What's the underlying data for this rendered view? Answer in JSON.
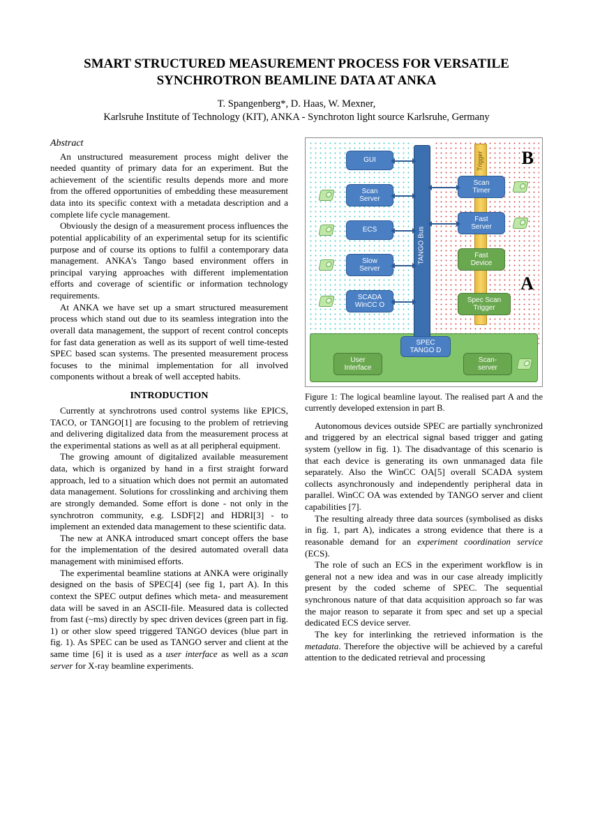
{
  "title_line1": "SMART STRUCTURED MEASUREMENT PROCESS FOR VERSATILE",
  "title_line2": "SYNCHROTRON BEAMLINE DATA AT ANKA",
  "authors_line1": "T. Spangenberg*, D. Haas, W. Mexner,",
  "authors_line2": "Karlsruhe Institute of Technology (KIT), ANKA - Synchroton light source Karlsruhe, Germany",
  "abstract_heading": "Abstract",
  "abstract_p1": "An unstructured measurement process might deliver the needed quantity of primary data for an experiment. But the achievement of the scientific results depends more and more from the offered opportunities of embedding these measurement data into its specific context with a metadata description and a complete life cycle management.",
  "abstract_p2": "Obviously the design of a measurement process influences the potential applicability of an experimental setup for its scientific purpose and of course its options to fulfil a contemporary data management. ANKA's Tango based environment offers in principal varying approaches with different implementation efforts and coverage of scientific or information technology requirements.",
  "abstract_p3": "At ANKA we have set up a smart structured measurement process which stand out due to its seamless integration into the overall data management, the support of recent control concepts for fast data generation as well as its support of well time-tested SPEC based scan systems. The presented measurement process focuses to the minimal implementation for all involved components without a break of well accepted habits.",
  "intro_heading": "INTRODUCTION",
  "intro_p1": "Currently at synchrotrons used control systems like EPICS, TACO, or TANGO[1] are focusing to the problem of retrieving and delivering digitalized data from the measurement process at the experimental stations as well as at all peripheral equipment.",
  "intro_p2": "The growing amount of digitalized available measurement data, which is organized by hand in a first straight forward approach, led to a situation which does not permit an automated data management. Solutions for crosslinking and archiving them are strongly demanded. Some effort is done - not only in the synchrotron community, e.g. LSDF[2] and HDRI[3] - to implement an extended data management to these scientific data.",
  "intro_p3": "The new at ANKA introduced smart concept offers the base for the implementation of the desired automated overall data management with minimised efforts.",
  "intro_p4a": "The experimental beamline stations at ANKA were originally designed on the basis of SPEC[4] (see fig 1, part A). In this context the SPEC output defines which meta- and measurement data will be saved in an ASCII-file. Measured data is collected from fast (~ms) directly by spec driven devices (green part in fig. 1) or other slow speed triggered TANGO devices (blue part in fig. 1). As SPEC can be used as TANGO server and client at the same time [6] it is used as a ",
  "intro_p4_term1": "user interface",
  "intro_p4b": " as well as a ",
  "intro_p4_term2": "scan server",
  "intro_p4c": " for X-ray beamline experiments.",
  "fig_caption": "Figure 1: The logical beamline layout. The realised part A and the currently developed extension in part B.",
  "r_p1": "Autonomous devices outside SPEC are partially synchronized and triggered by an electrical signal based trigger and gating system (yellow in fig. 1). The disadvantage of this scenario is that each device is generating its own unmanaged data file separately. Also the WinCC OA[5] overall SCADA system collects asynchronously and independently peripheral data in parallel. WinCC OA was extended by TANGO server and client capabilities [7].",
  "r_p2a": "The resulting already three data sources (symbolised as disks in fig. 1, part A), indicates a strong evidence that there is a reasonable demand for an ",
  "r_p2_term": "experiment coordination service",
  "r_p2b": " (ECS).",
  "r_p3": "The role of such an ECS in the experiment workflow is in general not a new idea and was in our case already implicitly present by the coded scheme of SPEC. The sequential synchronous nature of that data acquisition approach so far was the major reason to separate it from spec and set up a special dedicated ECS device server.",
  "r_p4a": "The key for interlinking the retrieved information is the ",
  "r_p4_term": "metadata",
  "r_p4b": ". Therefore the objective will be achieved by a careful attention to the dedicated retrieval and processing",
  "figure": {
    "colors": {
      "node_blue": "#4a7fc4",
      "node_blue_border": "#2d5a94",
      "node_green": "#6aa84f",
      "node_green_border": "#4a7a36",
      "green_region": "#81c469",
      "dots_red": "#d84a4a",
      "dots_cyan": "#49c9c9",
      "trigger_yellow": "#f0c850",
      "bg": "#ffffff"
    },
    "letters": {
      "A": "A",
      "B": "B"
    },
    "tango_bus_label": "TANGO Bus",
    "trigger_label": "Trigger",
    "nodes": {
      "gui": "GUI",
      "scan_server": "Scan\nServer",
      "ecs": "ECS",
      "slow_server": "Slow\nServer",
      "scada": "SCADA\nWinCC O",
      "scan_timer": "Scan\nTimer",
      "fast_server": "Fast\nServer",
      "fast_device": "Fast\nDevice",
      "spec_scan_trigger": "Spec Scan\nTrigger",
      "spec_tango": "SPEC\nTANGO D",
      "user_interface": "User\nInterface",
      "scanserver": "Scan-\nserver"
    }
  }
}
